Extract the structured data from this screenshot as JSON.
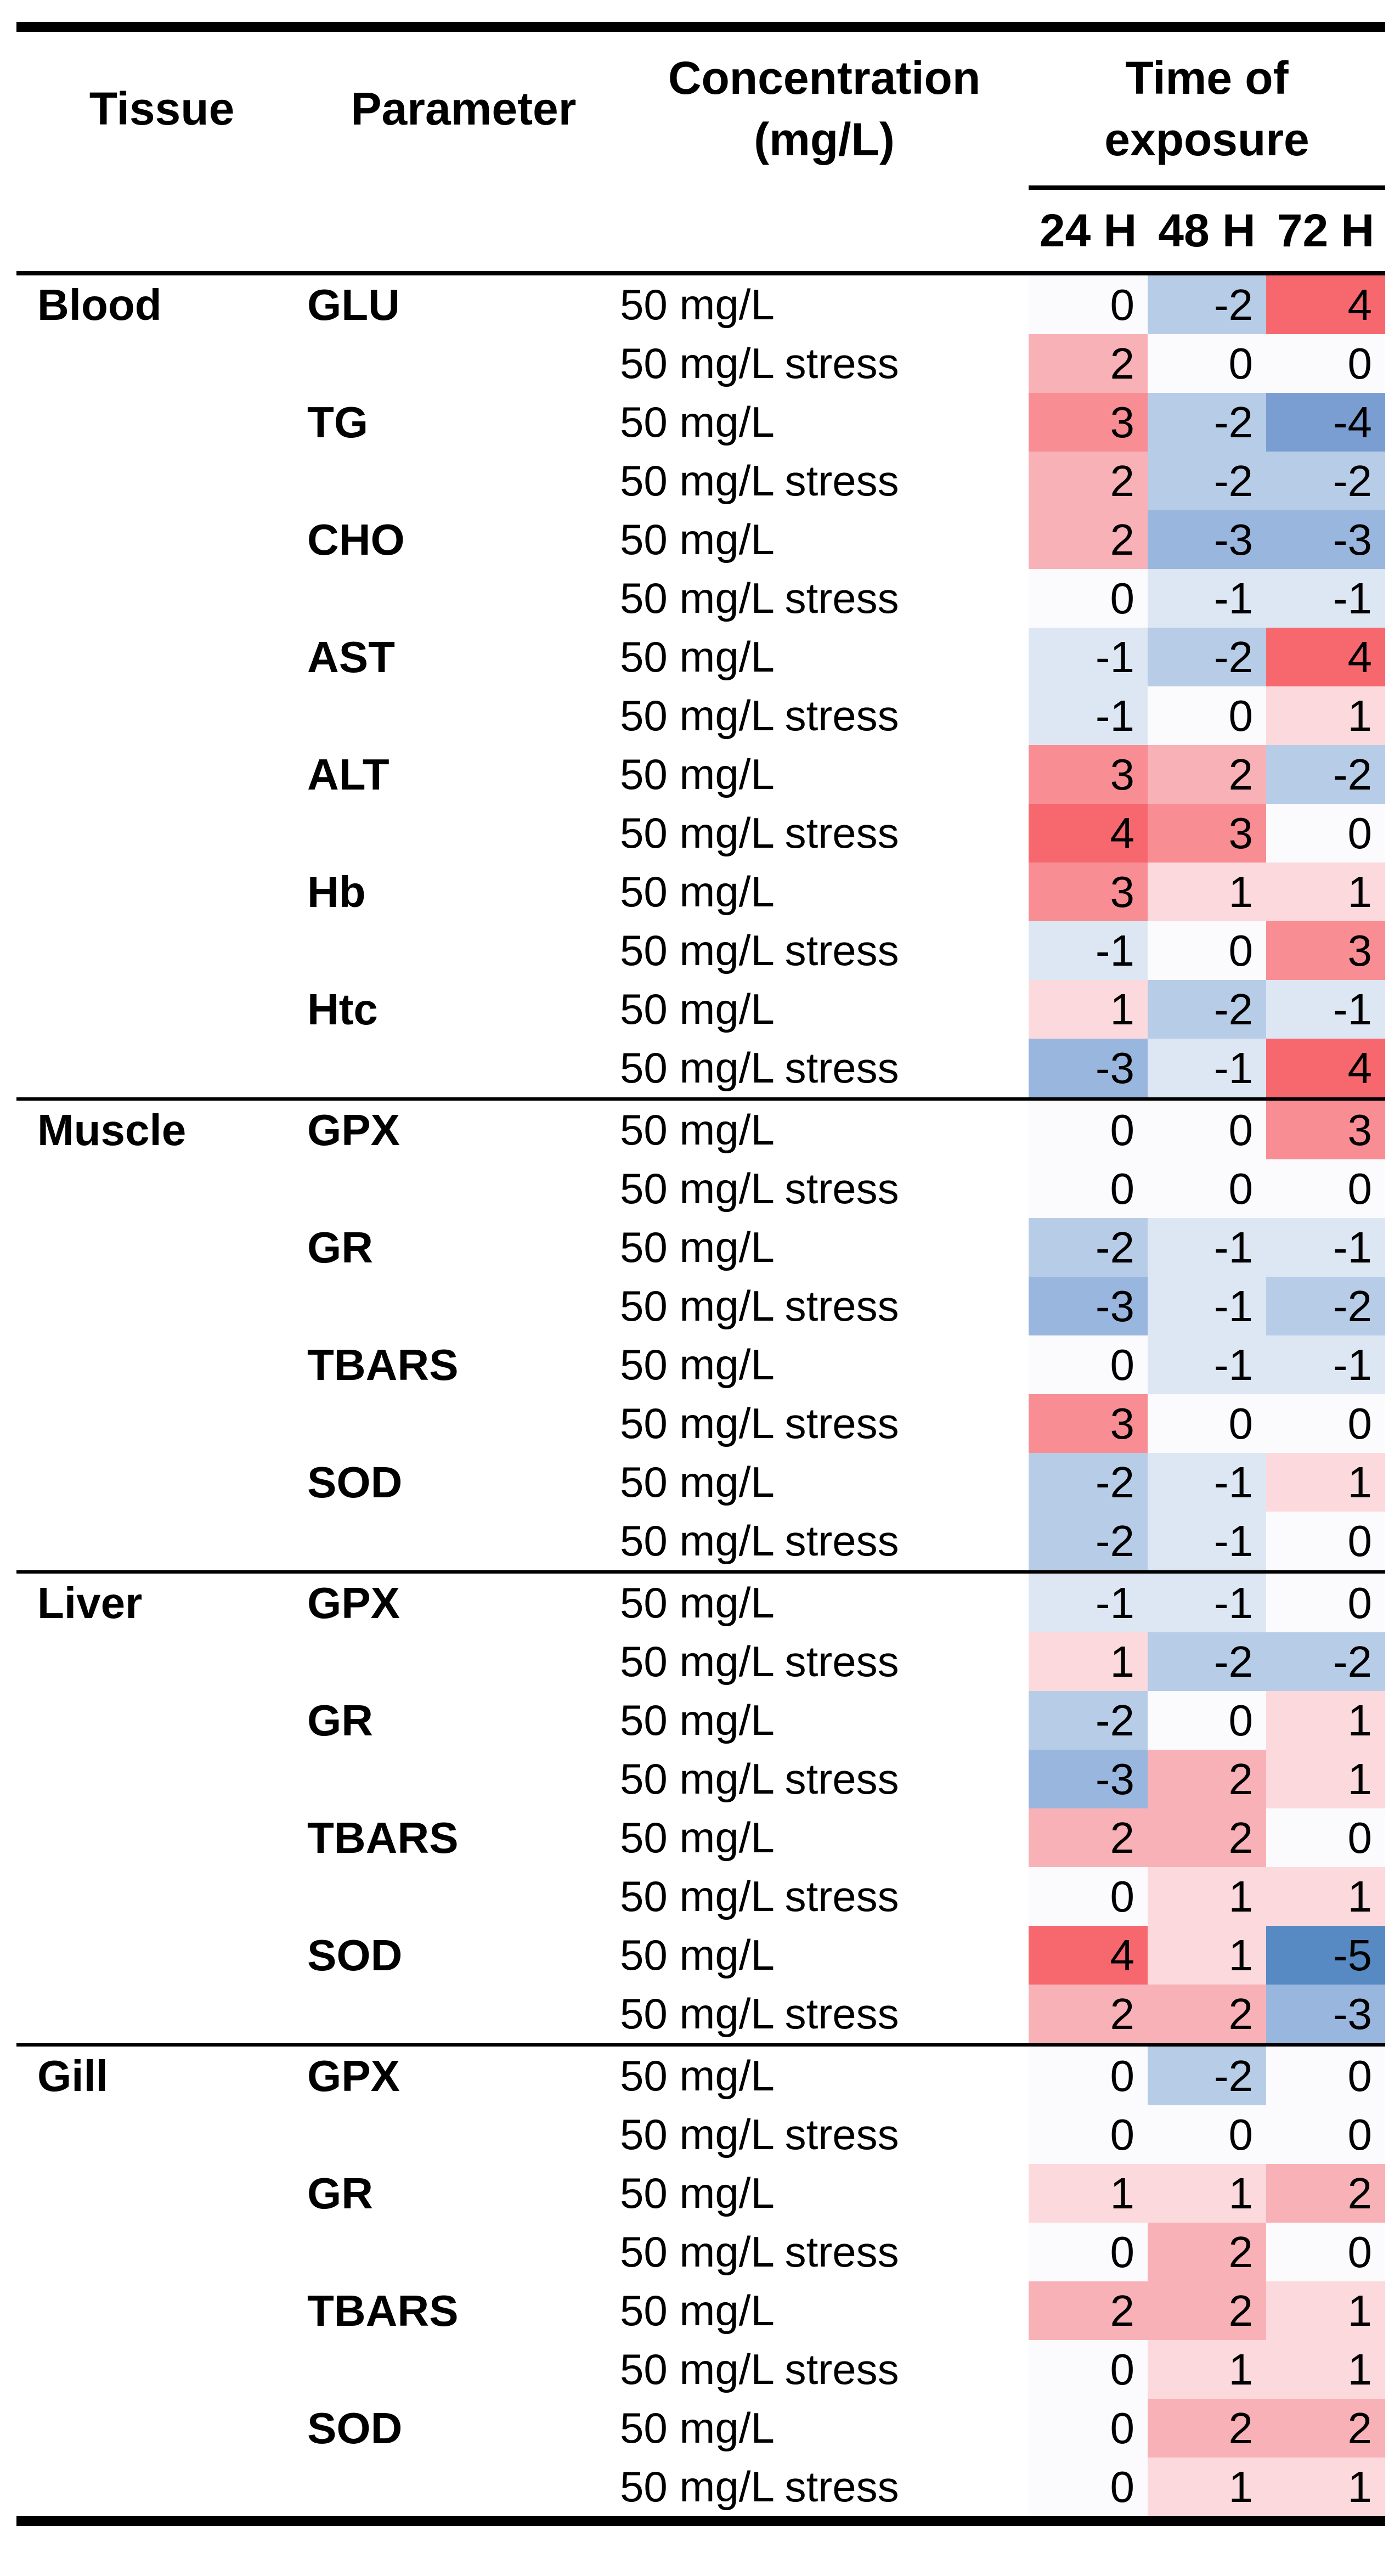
{
  "table": {
    "headers": {
      "tissue": "Tissue",
      "parameter": "Parameter",
      "concentration_line1": "Concentration",
      "concentration_line2": "(mg/L)",
      "time_line1": "Time of",
      "time_line2": "exposure",
      "time_cols": [
        "24 H",
        "48 H",
        "72 H"
      ]
    }
  },
  "chart_data": {
    "type": "heatmap",
    "columns": [
      "24 H",
      "48 H",
      "72 H"
    ],
    "value_range": [
      -5,
      4
    ],
    "legend_position": "none",
    "palette": {
      "-5": "#578ac2",
      "-4": "#7a9ed2",
      "-3": "#99b6de",
      "-2": "#b7cce7",
      "-1": "#dde7f4",
      "0": "#fbfbfe",
      "1": "#fbd9dc",
      "2": "#f8b1b6",
      "3": "#f88e93",
      "4": "#f7686e"
    },
    "groups": [
      {
        "tissue": "Blood",
        "parameters": [
          {
            "name": "GLU",
            "rows": [
              {
                "concentration": "50 mg/L",
                "values": [
                  0,
                  -2,
                  4
                ]
              },
              {
                "concentration": "50 mg/L stress",
                "values": [
                  2,
                  0,
                  0
                ]
              }
            ]
          },
          {
            "name": "TG",
            "rows": [
              {
                "concentration": "50 mg/L",
                "values": [
                  3,
                  -2,
                  -4
                ]
              },
              {
                "concentration": "50 mg/L stress",
                "values": [
                  2,
                  -2,
                  -2
                ]
              }
            ]
          },
          {
            "name": "CHO",
            "rows": [
              {
                "concentration": "50 mg/L",
                "values": [
                  2,
                  -3,
                  -3
                ]
              },
              {
                "concentration": "50 mg/L stress",
                "values": [
                  0,
                  -1,
                  -1
                ]
              }
            ]
          },
          {
            "name": "AST",
            "rows": [
              {
                "concentration": "50 mg/L",
                "values": [
                  -1,
                  -2,
                  4
                ]
              },
              {
                "concentration": "50 mg/L stress",
                "values": [
                  -1,
                  0,
                  1
                ]
              }
            ]
          },
          {
            "name": "ALT",
            "rows": [
              {
                "concentration": "50 mg/L",
                "values": [
                  3,
                  2,
                  -2
                ]
              },
              {
                "concentration": "50 mg/L stress",
                "values": [
                  4,
                  3,
                  0
                ]
              }
            ]
          },
          {
            "name": "Hb",
            "rows": [
              {
                "concentration": "50 mg/L",
                "values": [
                  3,
                  1,
                  1
                ]
              },
              {
                "concentration": "50 mg/L stress",
                "values": [
                  -1,
                  0,
                  3
                ]
              }
            ]
          },
          {
            "name": "Htc",
            "rows": [
              {
                "concentration": "50 mg/L",
                "values": [
                  1,
                  -2,
                  -1
                ]
              },
              {
                "concentration": "50 mg/L stress",
                "values": [
                  -3,
                  -1,
                  4
                ]
              }
            ]
          }
        ]
      },
      {
        "tissue": "Muscle",
        "parameters": [
          {
            "name": "GPX",
            "rows": [
              {
                "concentration": "50 mg/L",
                "values": [
                  0,
                  0,
                  3
                ]
              },
              {
                "concentration": "50 mg/L stress",
                "values": [
                  0,
                  0,
                  0
                ]
              }
            ]
          },
          {
            "name": "GR",
            "rows": [
              {
                "concentration": "50 mg/L",
                "values": [
                  -2,
                  -1,
                  -1
                ]
              },
              {
                "concentration": "50 mg/L stress",
                "values": [
                  -3,
                  -1,
                  -2
                ]
              }
            ]
          },
          {
            "name": "TBARS",
            "rows": [
              {
                "concentration": "50 mg/L",
                "values": [
                  0,
                  -1,
                  -1
                ]
              },
              {
                "concentration": "50 mg/L stress",
                "values": [
                  3,
                  0,
                  0
                ]
              }
            ]
          },
          {
            "name": "SOD",
            "rows": [
              {
                "concentration": "50 mg/L",
                "values": [
                  -2,
                  -1,
                  1
                ]
              },
              {
                "concentration": "50 mg/L stress",
                "values": [
                  -2,
                  -1,
                  0
                ]
              }
            ]
          }
        ]
      },
      {
        "tissue": "Liver",
        "parameters": [
          {
            "name": "GPX",
            "rows": [
              {
                "concentration": "50 mg/L",
                "values": [
                  -1,
                  -1,
                  0
                ]
              },
              {
                "concentration": "50 mg/L stress",
                "values": [
                  1,
                  -2,
                  -2
                ]
              }
            ]
          },
          {
            "name": "GR",
            "rows": [
              {
                "concentration": "50 mg/L",
                "values": [
                  -2,
                  0,
                  1
                ]
              },
              {
                "concentration": "50 mg/L stress",
                "values": [
                  -3,
                  2,
                  1
                ]
              }
            ]
          },
          {
            "name": "TBARS",
            "rows": [
              {
                "concentration": "50 mg/L",
                "values": [
                  2,
                  2,
                  0
                ]
              },
              {
                "concentration": "50 mg/L stress",
                "values": [
                  0,
                  1,
                  1
                ]
              }
            ]
          },
          {
            "name": "SOD",
            "rows": [
              {
                "concentration": "50 mg/L",
                "values": [
                  4,
                  1,
                  -5
                ]
              },
              {
                "concentration": "50 mg/L stress",
                "values": [
                  2,
                  2,
                  -3
                ]
              }
            ]
          }
        ]
      },
      {
        "tissue": "Gill",
        "parameters": [
          {
            "name": "GPX",
            "rows": [
              {
                "concentration": "50 mg/L",
                "values": [
                  0,
                  -2,
                  0
                ]
              },
              {
                "concentration": "50 mg/L stress",
                "values": [
                  0,
                  0,
                  0
                ]
              }
            ]
          },
          {
            "name": "GR",
            "rows": [
              {
                "concentration": "50 mg/L",
                "values": [
                  1,
                  1,
                  2
                ]
              },
              {
                "concentration": "50 mg/L stress",
                "values": [
                  0,
                  2,
                  0
                ]
              }
            ]
          },
          {
            "name": "TBARS",
            "rows": [
              {
                "concentration": "50 mg/L",
                "values": [
                  2,
                  2,
                  1
                ]
              },
              {
                "concentration": "50 mg/L stress",
                "values": [
                  0,
                  1,
                  1
                ]
              }
            ]
          },
          {
            "name": "SOD",
            "rows": [
              {
                "concentration": "50 mg/L",
                "values": [
                  0,
                  2,
                  2
                ]
              },
              {
                "concentration": "50 mg/L stress",
                "values": [
                  0,
                  1,
                  1
                ]
              }
            ]
          }
        ]
      }
    ]
  }
}
